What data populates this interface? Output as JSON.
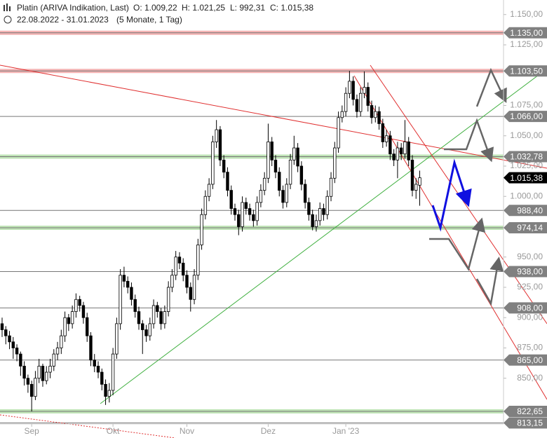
{
  "chart_data": {
    "type": "candlestick",
    "title": "Platin (ARIVA Indikation, Last)",
    "ohlc_header": [
      "O: 1.009,22",
      "H: 1.021,25",
      "L: 992,31",
      "C: 1.015,38"
    ],
    "subtitle": "22.08.2022 - 31.01.2023",
    "period": "(5 Monate, 1 Tag)",
    "up_color": "#ffffff",
    "down_color": "#000000",
    "ylim": [
      812.5,
      1162
    ],
    "yticks": [
      {
        "value": 1150,
        "label": "1.150,00"
      },
      {
        "value": 1125,
        "label": "1.125,00"
      },
      {
        "value": 1075,
        "label": "1.075,00"
      },
      {
        "value": 1050,
        "label": "1.050,00"
      },
      {
        "value": 1025,
        "label": "1.025,00"
      },
      {
        "value": 1000,
        "label": "1.000,00"
      },
      {
        "value": 950,
        "label": "950,00"
      },
      {
        "value": 925,
        "label": "925,00"
      },
      {
        "value": 900,
        "label": "900,00"
      },
      {
        "value": 875,
        "label": "875,00"
      },
      {
        "value": 850,
        "label": "850,00"
      }
    ],
    "levels": [
      {
        "value": 1135,
        "label": "1.135,00",
        "color": "#f4b4b4",
        "band": true
      },
      {
        "value": 1103.5,
        "label": "1.103,50",
        "color": "#f4b4b4",
        "band": true
      },
      {
        "value": 1066,
        "label": "1.066,00",
        "color": "#777777",
        "band": false
      },
      {
        "value": 1032.78,
        "label": "1.032,78",
        "color": "#bfe3b6",
        "band": true
      },
      {
        "value": 988.4,
        "label": "988,40",
        "color": "#777777",
        "band": false
      },
      {
        "value": 974.14,
        "label": "974,14",
        "color": "#bfe3b6",
        "band": true
      },
      {
        "value": 938,
        "label": "938,00",
        "color": "#777777",
        "band": false
      },
      {
        "value": 908,
        "label": "908,00",
        "color": "#777777",
        "band": false
      },
      {
        "value": 865,
        "label": "865,00",
        "color": "#777777",
        "band": false
      },
      {
        "value": 822.65,
        "label": "822,65",
        "color": "#bfe3b6",
        "band": true
      },
      {
        "value": 813.15,
        "label": "813,15",
        "color": "#777777",
        "band": false
      }
    ],
    "last_price": {
      "value": 1015.38,
      "label": "1.015,38"
    },
    "categories": [
      null,
      null,
      null,
      null,
      null,
      null,
      null,
      null,
      "Sep",
      null,
      null,
      null,
      null,
      null,
      null,
      null,
      null,
      null,
      null,
      null,
      null,
      null,
      null,
      null,
      null,
      null,
      null,
      null,
      null,
      null,
      "Okt",
      null,
      null,
      null,
      null,
      null,
      null,
      null,
      null,
      null,
      null,
      null,
      null,
      null,
      null,
      null,
      null,
      null,
      null,
      null,
      "Nov",
      null,
      null,
      null,
      null,
      null,
      null,
      null,
      null,
      null,
      null,
      null,
      null,
      null,
      null,
      null,
      null,
      null,
      null,
      null,
      null,
      null,
      "Dez",
      null,
      null,
      null,
      null,
      null,
      null,
      null,
      null,
      null,
      null,
      null,
      null,
      null,
      null,
      null,
      null,
      null,
      null,
      null,
      null,
      "Jan '23",
      null,
      null,
      null,
      null,
      null,
      null,
      null,
      null,
      null,
      null,
      null,
      null,
      null,
      null,
      null,
      null,
      null,
      null,
      null,
      null
    ],
    "values": [
      [
        895,
        900,
        884,
        890
      ],
      [
        890,
        893,
        878,
        885
      ],
      [
        885,
        889,
        874,
        880
      ],
      [
        880,
        884,
        866,
        875
      ],
      [
        875,
        878,
        864,
        870
      ],
      [
        870,
        872,
        852,
        860
      ],
      [
        860,
        864,
        844,
        850
      ],
      [
        850,
        853,
        838,
        845
      ],
      [
        845,
        848,
        822.65,
        835
      ],
      [
        835,
        856,
        832,
        850
      ],
      [
        850,
        866,
        846,
        860
      ],
      [
        860,
        862,
        843,
        848
      ],
      [
        848,
        860,
        845,
        855
      ],
      [
        855,
        866,
        850,
        860
      ],
      [
        860,
        874,
        856,
        870
      ],
      [
        870,
        880,
        865,
        875
      ],
      [
        875,
        890,
        870,
        885
      ],
      [
        885,
        905,
        880,
        900
      ],
      [
        900,
        903,
        889,
        895
      ],
      [
        895,
        910,
        891,
        905
      ],
      [
        905,
        920,
        900,
        915
      ],
      [
        915,
        918,
        905,
        910
      ],
      [
        910,
        913,
        895,
        900
      ],
      [
        900,
        904,
        880,
        885
      ],
      [
        885,
        888,
        860,
        865
      ],
      [
        865,
        870,
        855,
        860
      ],
      [
        860,
        864,
        850,
        855
      ],
      [
        855,
        858,
        840,
        845
      ],
      [
        845,
        849,
        828,
        835
      ],
      [
        835,
        846,
        830,
        840
      ],
      [
        840,
        875,
        836,
        870
      ],
      [
        870,
        900,
        866,
        895
      ],
      [
        895,
        940,
        890,
        935
      ],
      [
        935,
        942,
        925,
        930
      ],
      [
        930,
        934,
        920,
        925
      ],
      [
        925,
        929,
        910,
        915
      ],
      [
        915,
        919,
        900,
        905
      ],
      [
        905,
        909,
        890,
        895
      ],
      [
        895,
        898,
        870,
        890
      ],
      [
        890,
        894,
        880,
        885
      ],
      [
        885,
        900,
        881,
        895
      ],
      [
        895,
        915,
        891,
        910
      ],
      [
        910,
        913,
        900,
        905
      ],
      [
        905,
        908,
        890,
        895
      ],
      [
        895,
        910,
        891,
        905
      ],
      [
        905,
        930,
        901,
        925
      ],
      [
        925,
        940,
        921,
        935
      ],
      [
        935,
        955,
        931,
        950
      ],
      [
        950,
        954,
        940,
        945
      ],
      [
        945,
        949,
        930,
        935
      ],
      [
        935,
        939,
        920,
        925
      ],
      [
        925,
        929,
        905,
        915
      ],
      [
        915,
        940,
        911,
        935
      ],
      [
        935,
        965,
        931,
        960
      ],
      [
        960,
        990,
        956,
        985
      ],
      [
        985,
        1005,
        981,
        1000
      ],
      [
        1000,
        1015,
        996,
        1010
      ],
      [
        1010,
        1050,
        1006,
        1045
      ],
      [
        1045,
        1063,
        1040,
        1055
      ],
      [
        1055,
        1058,
        1025,
        1030
      ],
      [
        1030,
        1034,
        1015,
        1020
      ],
      [
        1020,
        1024,
        1000,
        1005
      ],
      [
        1005,
        1009,
        985,
        990
      ],
      [
        990,
        994,
        980,
        985
      ],
      [
        985,
        989,
        968,
        975
      ],
      [
        975,
        1000,
        971,
        995
      ],
      [
        995,
        999,
        985,
        990
      ],
      [
        990,
        994,
        980,
        985
      ],
      [
        985,
        989,
        975,
        980
      ],
      [
        980,
        1000,
        976,
        995
      ],
      [
        995,
        1010,
        991,
        1005
      ],
      [
        1005,
        1020,
        1001,
        1015
      ],
      [
        1015,
        1060,
        1011,
        1045
      ],
      [
        1045,
        1049,
        1025,
        1030
      ],
      [
        1030,
        1034,
        1015,
        1020
      ],
      [
        1020,
        1024,
        1000,
        1005
      ],
      [
        1005,
        1009,
        990,
        995
      ],
      [
        995,
        1015,
        991,
        1010
      ],
      [
        1010,
        1035,
        1006,
        1030
      ],
      [
        1030,
        1050,
        1026,
        1040
      ],
      [
        1040,
        1044,
        1020,
        1025
      ],
      [
        1025,
        1029,
        1005,
        1010
      ],
      [
        1010,
        1014,
        990,
        995
      ],
      [
        995,
        999,
        980,
        985
      ],
      [
        985,
        989,
        972,
        975
      ],
      [
        975,
        985,
        971,
        980
      ],
      [
        980,
        995,
        976,
        990
      ],
      [
        990,
        994,
        980,
        985
      ],
      [
        985,
        1005,
        981,
        1000
      ],
      [
        1000,
        1020,
        996,
        1015
      ],
      [
        1015,
        1045,
        1011,
        1040
      ],
      [
        1040,
        1070,
        1036,
        1065
      ],
      [
        1065,
        1075,
        1061,
        1070
      ],
      [
        1070,
        1090,
        1066,
        1085
      ],
      [
        1085,
        1103.5,
        1081,
        1095
      ],
      [
        1095,
        1099,
        1075,
        1080
      ],
      [
        1080,
        1084,
        1065,
        1070
      ],
      [
        1070,
        1090,
        1066,
        1085
      ],
      [
        1085,
        1103,
        1081,
        1090
      ],
      [
        1090,
        1094,
        1070,
        1075
      ],
      [
        1075,
        1079,
        1060,
        1065
      ],
      [
        1065,
        1075,
        1061,
        1070
      ],
      [
        1070,
        1074,
        1055,
        1060
      ],
      [
        1060,
        1064,
        1040,
        1045
      ],
      [
        1045,
        1055,
        1041,
        1050
      ],
      [
        1050,
        1054,
        1030,
        1035
      ],
      [
        1035,
        1039,
        1025,
        1030
      ],
      [
        1030,
        1045,
        1015,
        1040
      ],
      [
        1040,
        1044,
        1030,
        1035
      ],
      [
        1035,
        1063,
        1031,
        1045
      ],
      [
        1045,
        1049,
        1025,
        1030
      ],
      [
        1030,
        1034,
        1000,
        1005
      ],
      [
        1005,
        1015,
        998,
        1010
      ],
      [
        1009.22,
        1021.25,
        992.31,
        1015.38
      ]
    ]
  }
}
